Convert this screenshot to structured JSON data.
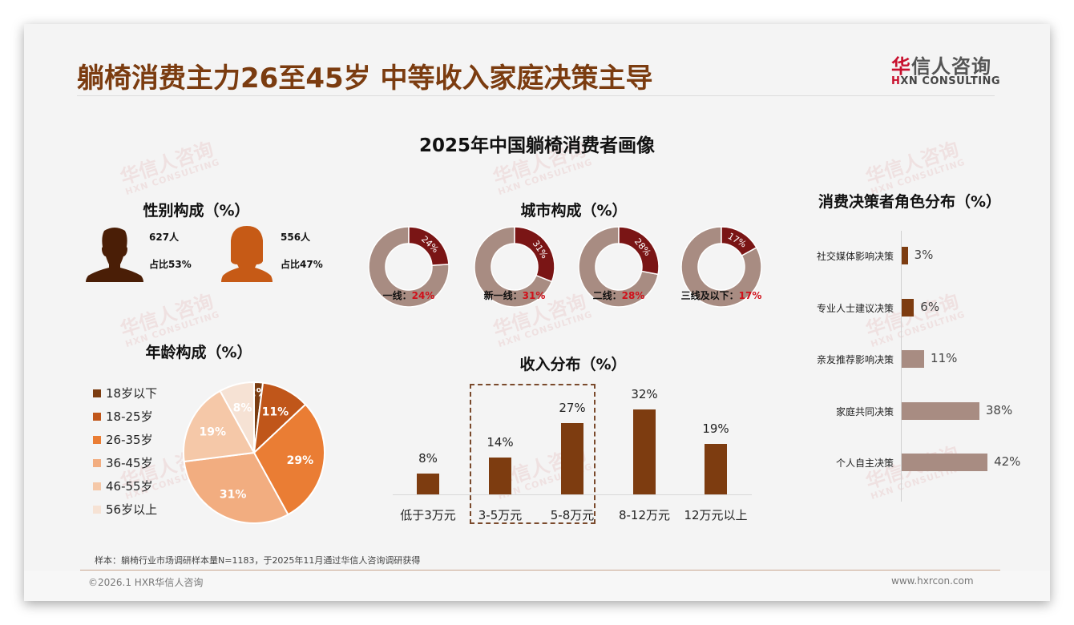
{
  "header": {
    "title": "躺椅消费主力26至45岁 中等收入家庭决策主导",
    "logo_cn_first": "华",
    "logo_cn_rest": "信人咨询",
    "logo_en_first": "H",
    "logo_en_rest": "XN CONSULTING"
  },
  "main_title": "2025年中国躺椅消费者画像",
  "watermark": {
    "cn": "华信人咨询",
    "en": "HXN CONSULTING"
  },
  "gender": {
    "title": "性别构成（%）",
    "male": {
      "count": "627人",
      "share": "占比53%",
      "color": "#4a1e06",
      "icon": "male-silhouette-icon"
    },
    "female": {
      "count": "556人",
      "share": "占比47%",
      "color": "#c65a16",
      "icon": "female-silhouette-icon"
    }
  },
  "age": {
    "title": "年龄构成（%）"
  },
  "city": {
    "title": "城市构成（%）"
  },
  "income": {
    "title": "收入分布（%）"
  },
  "decision": {
    "title": "消费决策者角色分布（%）"
  },
  "chart_data": [
    {
      "type": "bar",
      "title": "性别构成（%）",
      "categories": [
        "男",
        "女"
      ],
      "values": [
        53,
        47
      ],
      "counts": [
        627,
        556
      ]
    },
    {
      "type": "pie",
      "title": "年龄构成（%）",
      "categories": [
        "18岁以下",
        "18-25岁",
        "26-35岁",
        "36-45岁",
        "46-55岁",
        "56岁以上"
      ],
      "values": [
        2,
        11,
        29,
        31,
        19,
        8
      ],
      "labels": [
        "2%",
        "11%",
        "29%",
        "31%",
        "19%",
        "8%"
      ],
      "colors": [
        "#7b3c10",
        "#c0561a",
        "#ea7d34",
        "#f2ad80",
        "#f5c8a8",
        "#f6e2d4"
      ],
      "legend_position": "left"
    },
    {
      "type": "pie",
      "subtype": "donut",
      "title": "城市构成（%）",
      "categories": [
        "一线",
        "新一线",
        "二线",
        "三线及以下"
      ],
      "values": [
        24,
        31,
        28,
        17
      ],
      "labels": [
        "一线：",
        "新一线：",
        "二线：",
        "三线及以下："
      ],
      "value_labels": [
        "24%",
        "31%",
        "28%",
        "17%"
      ],
      "highlight_color": "#7a1515",
      "rest_color": "#a88c82"
    },
    {
      "type": "bar",
      "title": "收入分布（%）",
      "categories": [
        "低于3万元",
        "3-5万元",
        "5-8万元",
        "8-12万元",
        "12万元以上"
      ],
      "values": [
        8,
        14,
        27,
        32,
        19
      ],
      "labels": [
        "8%",
        "14%",
        "27%",
        "32%",
        "19%"
      ],
      "color": "#7d3c10",
      "highlighted_range": [
        "3-5万元",
        "5-8万元"
      ],
      "xlabel": "",
      "ylabel": "",
      "grid": false
    },
    {
      "type": "bar",
      "orientation": "horizontal",
      "title": "消费决策者角色分布（%）",
      "categories": [
        "社交媒体影响决策",
        "专业人士建议决策",
        "亲友推荐影响决策",
        "家庭共同决策",
        "个人自主决策"
      ],
      "values": [
        3,
        6,
        11,
        38,
        42
      ],
      "labels": [
        "3%",
        "6%",
        "11%",
        "38%",
        "42%"
      ],
      "colors": [
        "#7d3c10",
        "#7d3c10",
        "#a88c82",
        "#a88c82",
        "#a88c82"
      ],
      "grid": false
    }
  ],
  "footer": {
    "note": "样本：躺椅行业市场调研样本量N=1183，于2025年11月通过华信人咨询调研获得",
    "copyright": "©2026.1 HXR华信人咨询",
    "website": "www.hxrcon.com"
  }
}
